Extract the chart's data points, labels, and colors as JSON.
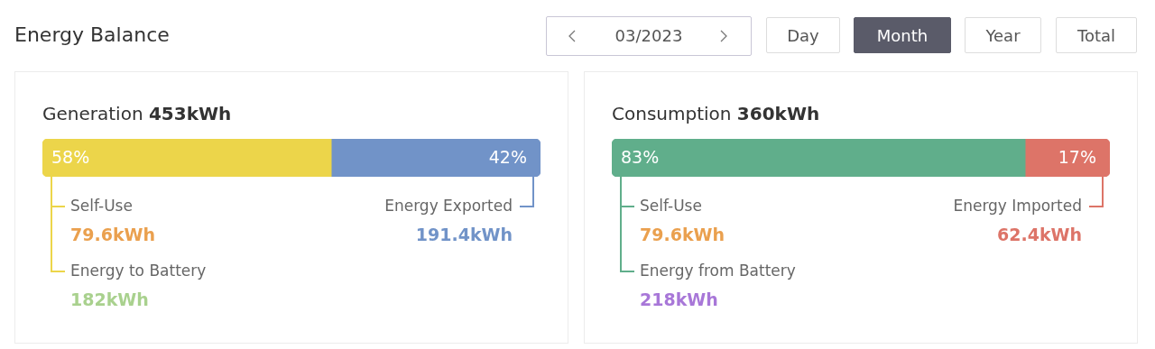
{
  "chart_data": [
    {
      "type": "other",
      "title": "Energy Balance",
      "annotations": [
        "03/2023",
        "Day",
        "Month",
        "Year",
        "Total"
      ]
    },
    {
      "type": "bar",
      "orientation": "horizontal",
      "stacked": true,
      "title": "Generation 453kWh",
      "categories": [
        null
      ],
      "xlim": [
        0,
        100
      ],
      "tick_labels": false,
      "grid": false,
      "legend": false,
      "series": [
        {
          "color": "#ecd54a",
          "values": [
            58
          ],
          "value_labels": [
            "58%"
          ]
        },
        {
          "color": "#7193c8",
          "values": [
            42
          ],
          "value_labels": [
            "42%"
          ]
        }
      ],
      "annotations": [
        "Self-Use",
        "79.6kWh",
        "Energy to Battery",
        "182kWh",
        "Energy Exported",
        "191.4kWh"
      ]
    },
    {
      "type": "bar",
      "orientation": "horizontal",
      "stacked": true,
      "title": "Consumption 360kWh",
      "categories": [
        null
      ],
      "xlim": [
        0,
        100
      ],
      "tick_labels": false,
      "grid": false,
      "legend": false,
      "series": [
        {
          "color": "#60ae8b",
          "values": [
            83
          ],
          "value_labels": [
            "83%"
          ]
        },
        {
          "color": "#dd7468",
          "values": [
            17
          ],
          "value_labels": [
            "17%"
          ]
        }
      ],
      "annotations": [
        "Self-Use",
        "79.6kWh",
        "Energy from Battery",
        "218kWh",
        "Energy Imported",
        "62.4kWh"
      ]
    }
  ]
}
